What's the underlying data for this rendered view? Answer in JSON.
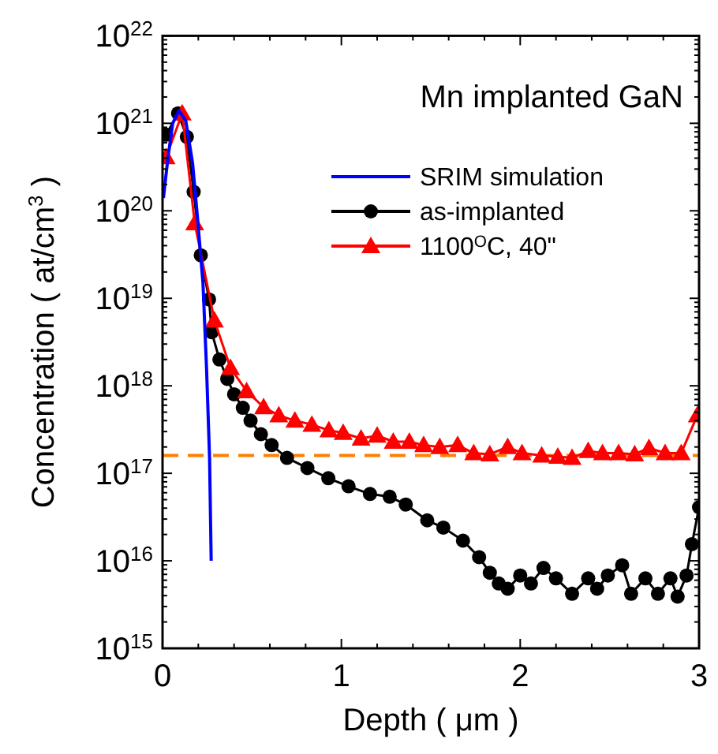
{
  "chart_data": {
    "type": "line",
    "title": "Mn implanted GaN",
    "xlabel": "Depth ( μm )",
    "ylabel": "Concentration ( at/cm$^{3}$ )",
    "log": "y",
    "xlim": [
      0,
      3
    ],
    "ylim": [
      1000000000000000.0,
      1e+22
    ],
    "xticks": [
      0,
      {
        "value": 0.2,
        "label": null
      },
      {
        "value": 0.4,
        "label": null
      },
      {
        "value": 0.6,
        "label": null
      },
      {
        "value": 0.8,
        "label": null
      },
      1,
      {
        "value": 1.2,
        "label": null
      },
      {
        "value": 1.4,
        "label": null
      },
      {
        "value": 1.6,
        "label": null
      },
      {
        "value": 1.8,
        "label": null
      },
      2,
      {
        "value": 2.2,
        "label": null
      },
      {
        "value": 2.4,
        "label": null
      },
      {
        "value": 2.6,
        "label": null
      },
      {
        "value": 2.8,
        "label": null
      },
      3
    ],
    "yticks": [
      {
        "value": 1000000000000000.0,
        "label": "10$^{15}$"
      },
      {
        "value": 2000000000000000.0,
        "label": null
      },
      {
        "value": 3000000000000000.0,
        "label": null
      },
      {
        "value": 4000000000000000.0,
        "label": null
      },
      {
        "value": 5000000000000000.0,
        "label": null
      },
      {
        "value": 6000000000000000.0,
        "label": null
      },
      {
        "value": 7000000000000000.0,
        "label": null
      },
      {
        "value": 8000000000000000.0,
        "label": null
      },
      {
        "value": 9000000000000000.0,
        "label": null
      },
      {
        "value": 1e+16,
        "label": "10$^{16}$"
      },
      {
        "value": 2e+16,
        "label": null
      },
      {
        "value": 3e+16,
        "label": null
      },
      {
        "value": 4e+16,
        "label": null
      },
      {
        "value": 5e+16,
        "label": null
      },
      {
        "value": 6e+16,
        "label": null
      },
      {
        "value": 7e+16,
        "label": null
      },
      {
        "value": 8e+16,
        "label": null
      },
      {
        "value": 9e+16,
        "label": null
      },
      {
        "value": 1e+17,
        "label": "10$^{17}$"
      },
      {
        "value": 2e+17,
        "label": null
      },
      {
        "value": 3e+17,
        "label": null
      },
      {
        "value": 4e+17,
        "label": null
      },
      {
        "value": 5e+17,
        "label": null
      },
      {
        "value": 6e+17,
        "label": null
      },
      {
        "value": 7e+17,
        "label": null
      },
      {
        "value": 8e+17,
        "label": null
      },
      {
        "value": 9e+17,
        "label": null
      },
      {
        "value": 1e+18,
        "label": "10$^{18}$"
      },
      {
        "value": 2e+18,
        "label": null
      },
      {
        "value": 3e+18,
        "label": null
      },
      {
        "value": 4e+18,
        "label": null
      },
      {
        "value": 5e+18,
        "label": null
      },
      {
        "value": 6e+18,
        "label": null
      },
      {
        "value": 7e+18,
        "label": null
      },
      {
        "value": 8e+18,
        "label": null
      },
      {
        "value": 9e+18,
        "label": null
      },
      {
        "value": 1e+19,
        "label": "10$^{19}$"
      },
      {
        "value": 2e+19,
        "label": null
      },
      {
        "value": 3e+19,
        "label": null
      },
      {
        "value": 4e+19,
        "label": null
      },
      {
        "value": 5e+19,
        "label": null
      },
      {
        "value": 6e+19,
        "label": null
      },
      {
        "value": 7e+19,
        "label": null
      },
      {
        "value": 8e+19,
        "label": null
      },
      {
        "value": 9e+19,
        "label": null
      },
      {
        "value": 1e+20,
        "label": "10$^{20}$"
      },
      {
        "value": 2e+20,
        "label": null
      },
      {
        "value": 3e+20,
        "label": null
      },
      {
        "value": 4e+20,
        "label": null
      },
      {
        "value": 5e+20,
        "label": null
      },
      {
        "value": 6e+20,
        "label": null
      },
      {
        "value": 7e+20,
        "label": null
      },
      {
        "value": 8e+20,
        "label": null
      },
      {
        "value": 9e+20,
        "label": null
      },
      {
        "value": 1e+21,
        "label": "10$^{21}$"
      },
      {
        "value": 2e+21,
        "label": null
      },
      {
        "value": 3e+21,
        "label": null
      },
      {
        "value": 4e+21,
        "label": null
      },
      {
        "value": 5e+21,
        "label": null
      },
      {
        "value": 6e+21,
        "label": null
      },
      {
        "value": 7e+21,
        "label": null
      },
      {
        "value": 8e+21,
        "label": null
      },
      {
        "value": 9e+21,
        "label": null
      },
      {
        "value": 1e+22,
        "label": "10$^{22}$"
      }
    ],
    "grid": false,
    "legend": "top right",
    "ref_lines": [
      {
        "axis": "y",
        "value": 1.6e+17,
        "color": "#ff7f00",
        "line_style": "dashed"
      }
    ],
    "series": [
      {
        "name": "SRIM simulation",
        "color": "#0000ff",
        "marker": "none",
        "x": [
          0.005,
          0.03,
          0.057,
          0.092,
          0.13,
          0.168,
          0.197,
          0.226,
          0.246,
          0.263,
          0.272
        ],
        "values": [
          1.4e+20,
          4e+20,
          1e+21,
          1.4e+21,
          1.07e+21,
          3.5e+20,
          7.7e+19,
          1.5e+19,
          1.6e+18,
          1.5e+17,
          1e+16
        ]
      },
      {
        "name": "as-implanted",
        "color": "#000000",
        "marker": "circle",
        "x": [
          0.02,
          0.087,
          0.136,
          0.174,
          0.214,
          0.26,
          0.275,
          0.318,
          0.362,
          0.4,
          0.449,
          0.492,
          0.55,
          0.61,
          0.696,
          0.81,
          0.927,
          1.04,
          1.16,
          1.27,
          1.36,
          1.48,
          1.57,
          1.68,
          1.77,
          1.83,
          1.88,
          1.93,
          2.0,
          2.06,
          2.13,
          2.2,
          2.29,
          2.38,
          2.43,
          2.49,
          2.57,
          2.62,
          2.7,
          2.77,
          2.84,
          2.88,
          2.93,
          2.96,
          3.0
        ],
        "values": [
          7.4e+20,
          1.3e+21,
          7e+20,
          1.65e+20,
          3.1e+19,
          9.7e+18,
          4.1e+18,
          2e+18,
          1.2e+18,
          8e+17,
          5.6e+17,
          4e+17,
          2.8e+17,
          2.1e+17,
          1.5e+17,
          1.15e+17,
          8.8e+16,
          7.1e+16,
          5.8e+16,
          5.4e+16,
          4.4e+16,
          2.9e+16,
          2.4e+16,
          1.7e+16,
          1.1e+16,
          7300000000000000.0,
          5500000000000000.0,
          4800000000000000.0,
          6800000000000000.0,
          5500000000000000.0,
          8300000000000000.0,
          6300000000000000.0,
          4200000000000000.0,
          6300000000000000.0,
          4800000000000000.0,
          6800000000000000.0,
          8900000000000000.0,
          4200000000000000.0,
          6300000000000000.0,
          4200000000000000.0,
          6300000000000000.0,
          3900000000000000.0,
          6800000000000000.0,
          1.55e+16,
          4.1e+16
        ]
      },
      {
        "name": "1100$^{O}$C, 40\"",
        "color": "#ff0000",
        "marker": "triangle",
        "x": [
          0.02,
          0.11,
          0.18,
          0.29,
          0.38,
          0.47,
          0.565,
          0.65,
          0.74,
          0.835,
          0.93,
          1.01,
          1.11,
          1.2,
          1.29,
          1.38,
          1.46,
          1.55,
          1.65,
          1.74,
          1.83,
          1.93,
          2.01,
          2.12,
          2.21,
          2.29,
          2.38,
          2.46,
          2.55,
          2.64,
          2.72,
          2.81,
          2.9,
          2.99
        ],
        "values": [
          4.1e+20,
          1.3e+21,
          7.2e+19,
          5.6e+18,
          1.6e+18,
          8.7e+17,
          5.7e+17,
          4.6e+17,
          4e+17,
          3.6e+17,
          3.1e+17,
          2.9e+17,
          2.5e+17,
          2.7e+17,
          2.3e+17,
          2.3e+17,
          2.1e+17,
          2e+17,
          2.1e+17,
          1.7e+17,
          1.65e+17,
          2e+17,
          1.7e+17,
          1.6e+17,
          1.55e+17,
          1.5e+17,
          1.8e+17,
          1.7e+17,
          1.7e+17,
          1.65e+17,
          1.95e+17,
          1.7e+17,
          1.7e+17,
          4.6e+17
        ]
      }
    ]
  }
}
